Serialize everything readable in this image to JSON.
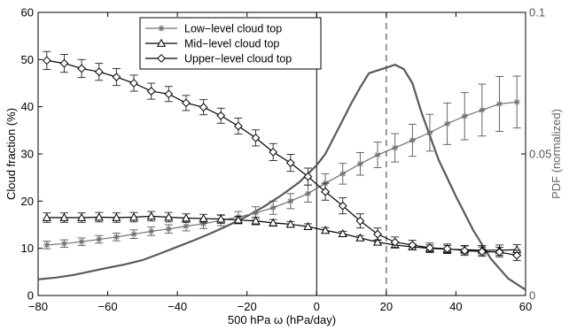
{
  "chart_data": {
    "type": "line",
    "title": "",
    "xlabel": "500 hPa ω (hPa/day)",
    "ylabel": "Cloud fraction (%)",
    "y2label": "PDF (normalized)",
    "xlim": [
      -80,
      60
    ],
    "ylim": [
      0,
      60
    ],
    "y2lim": [
      0,
      0.1
    ],
    "x_ticks": [
      "−80",
      "−60",
      "−40",
      "−20",
      "0",
      "20",
      "40",
      "60"
    ],
    "y_ticks": [
      "0",
      "10",
      "20",
      "30",
      "40",
      "50",
      "60"
    ],
    "y2_ticks": [
      "0",
      "0.05",
      "0.1"
    ],
    "grid": false,
    "legend_position": "top-center",
    "reference_lines": {
      "solid_x": 0,
      "dashed_x": 20
    },
    "series": [
      {
        "name": "Low−level cloud top",
        "marker": "asterisk",
        "color": "#707070",
        "x": [
          -77.5,
          -72.5,
          -67.5,
          -62.5,
          -57.5,
          -52.5,
          -47.5,
          -42.5,
          -37.5,
          -32.5,
          -27.5,
          -22.5,
          -17.5,
          -12.5,
          -7.5,
          -2.5,
          2.5,
          7.5,
          12.5,
          17.5,
          22.5,
          27.5,
          32.5,
          37.5,
          42.5,
          47.5,
          52.5,
          57.5
        ],
        "y": [
          10.7,
          11.0,
          11.4,
          11.9,
          12.4,
          13.0,
          13.6,
          14.1,
          14.7,
          15.2,
          15.9,
          16.6,
          17.5,
          18.6,
          20.0,
          21.6,
          23.8,
          25.8,
          27.9,
          29.8,
          31.3,
          32.9,
          34.5,
          36.4,
          38.0,
          39.3,
          40.6,
          41.0
        ],
        "err": [
          0.8,
          0.8,
          0.8,
          0.8,
          0.8,
          0.9,
          0.9,
          0.9,
          1.0,
          1.0,
          1.1,
          1.2,
          1.3,
          1.4,
          1.6,
          1.8,
          2.0,
          2.2,
          2.4,
          2.7,
          3.0,
          3.4,
          3.9,
          4.4,
          5.0,
          5.5,
          5.8,
          5.5
        ]
      },
      {
        "name": "Mid−level cloud top",
        "marker": "triangle",
        "color": "#000000",
        "x": [
          -77.5,
          -72.5,
          -67.5,
          -62.5,
          -57.5,
          -52.5,
          -47.5,
          -42.5,
          -37.5,
          -32.5,
          -27.5,
          -22.5,
          -17.5,
          -12.5,
          -7.5,
          -2.5,
          2.5,
          7.5,
          12.5,
          17.5,
          22.5,
          27.5,
          32.5,
          37.5,
          42.5,
          47.5,
          52.5,
          57.5
        ],
        "y": [
          16.5,
          16.5,
          16.5,
          16.6,
          16.5,
          16.6,
          16.8,
          16.6,
          16.4,
          16.3,
          16.2,
          16.0,
          15.8,
          15.4,
          15.1,
          14.6,
          13.8,
          13.1,
          12.2,
          11.3,
          10.7,
          10.3,
          10.0,
          9.8,
          9.7,
          9.6,
          9.6,
          9.7
        ],
        "err": [
          1.0,
          1.0,
          1.0,
          1.0,
          1.0,
          1.0,
          1.0,
          1.0,
          0.9,
          0.9,
          0.9,
          0.8,
          0.8,
          0.7,
          0.6,
          0.6,
          0.6,
          0.5,
          0.5,
          0.5,
          0.5,
          0.6,
          0.7,
          0.8,
          0.9,
          1.0,
          1.1,
          1.1
        ]
      },
      {
        "name": "Upper−level cloud top",
        "marker": "diamond",
        "color": "#000000",
        "x": [
          -77.5,
          -72.5,
          -67.5,
          -62.5,
          -57.5,
          -52.5,
          -47.5,
          -42.5,
          -37.5,
          -32.5,
          -27.5,
          -22.5,
          -17.5,
          -12.5,
          -7.5,
          -2.5,
          2.5,
          7.5,
          12.5,
          17.5,
          22.5,
          27.5,
          32.5,
          37.5,
          42.5,
          47.5,
          52.5,
          57.5
        ],
        "y": [
          49.8,
          49.2,
          48.1,
          47.4,
          46.3,
          45.0,
          43.3,
          42.7,
          40.8,
          39.9,
          38.1,
          35.9,
          33.4,
          30.4,
          28.1,
          25.2,
          22.0,
          19.0,
          15.8,
          13.0,
          11.3,
          10.7,
          10.1,
          9.9,
          9.5,
          9.3,
          9.2,
          8.5
        ],
        "err": [
          1.9,
          1.9,
          1.9,
          1.8,
          1.8,
          1.7,
          1.7,
          1.6,
          1.6,
          1.6,
          1.6,
          1.7,
          1.7,
          1.8,
          1.8,
          1.8,
          1.8,
          1.7,
          1.5,
          1.3,
          1.1,
          1.0,
          1.0,
          1.0,
          1.0,
          1.0,
          1.0,
          1.1
        ]
      },
      {
        "name": "",
        "axis": "right",
        "color": "#5a5a5a",
        "x": [
          -80,
          -75,
          -70,
          -65,
          -60,
          -55,
          -50,
          -45,
          -40,
          -35,
          -30,
          -25,
          -20,
          -15,
          -10,
          -5,
          0,
          2.5,
          5,
          7.5,
          10,
          12.5,
          15,
          17.5,
          20,
          22.5,
          25,
          27.5,
          30,
          35,
          40,
          45,
          50,
          55,
          60
        ],
        "y": [
          0.0057,
          0.0063,
          0.0072,
          0.0085,
          0.0098,
          0.011,
          0.0125,
          0.0148,
          0.0172,
          0.0196,
          0.0222,
          0.025,
          0.028,
          0.0315,
          0.0355,
          0.04,
          0.046,
          0.05,
          0.056,
          0.062,
          0.068,
          0.0735,
          0.0785,
          0.0795,
          0.0805,
          0.0815,
          0.08,
          0.075,
          0.065,
          0.048,
          0.035,
          0.023,
          0.013,
          0.006,
          0.002
        ]
      }
    ]
  }
}
